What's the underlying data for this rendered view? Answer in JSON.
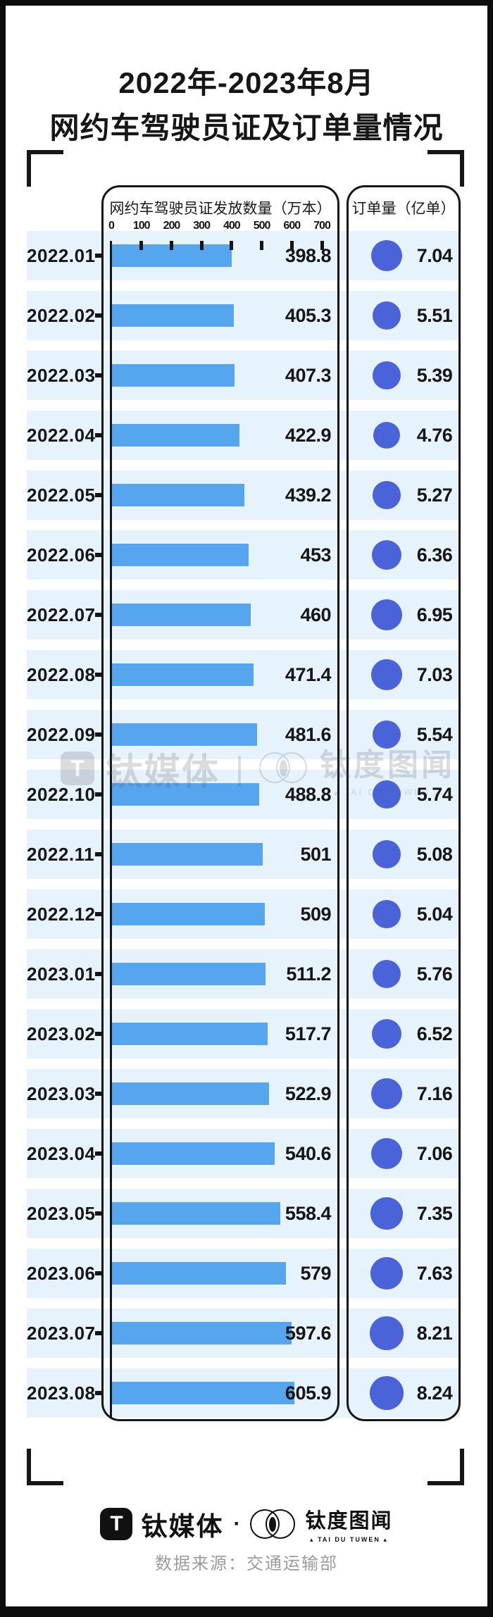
{
  "title": {
    "line1": "2022年-2023年8月",
    "line2": "网约车驾驶员证及订单量情况"
  },
  "panels": {
    "bars_header": "网约车驾驶员证发放数量（万本）",
    "orders_header": "订单量（亿单）"
  },
  "axis": {
    "ticks": [
      0,
      100,
      200,
      300,
      400,
      500,
      600,
      700
    ]
  },
  "chart_data": {
    "type": "bar",
    "orientation": "horizontal",
    "title": "2022年-2023年8月网约车驾驶员证及订单量情况",
    "categories": [
      "2022.01",
      "2022.02",
      "2022.03",
      "2022.04",
      "2022.05",
      "2022.06",
      "2022.07",
      "2022.08",
      "2022.09",
      "2022.10",
      "2022.11",
      "2022.12",
      "2023.01",
      "2023.02",
      "2023.03",
      "2023.04",
      "2023.05",
      "2023.06",
      "2023.07",
      "2023.08"
    ],
    "series": [
      {
        "name": "网约车驾驶员证发放数量（万本）",
        "type": "bar",
        "values": [
          398.8,
          405.3,
          407.3,
          422.9,
          439.2,
          453,
          460,
          471.4,
          481.6,
          488.8,
          501,
          509,
          511.2,
          517.7,
          522.9,
          540.6,
          558.4,
          579,
          597.6,
          605.9
        ]
      },
      {
        "name": "订单量（亿单）",
        "type": "point",
        "values": [
          7.04,
          5.51,
          5.39,
          4.76,
          5.27,
          6.36,
          6.95,
          7.03,
          5.54,
          5.74,
          5.08,
          5.04,
          5.76,
          6.52,
          7.16,
          7.06,
          7.35,
          7.63,
          8.21,
          8.24
        ]
      }
    ],
    "xlim": [
      0,
      700
    ],
    "x_ticks": [
      0,
      100,
      200,
      300,
      400,
      500,
      600,
      700
    ],
    "grid": false,
    "legend_position": "top"
  },
  "watermark": {
    "logo_glyph": "T",
    "brand1": "钛媒体",
    "divider": "|",
    "brand2": "钛度图闻",
    "brand2_caption": "▴ TAI DU TUWEN ▴"
  },
  "footer": {
    "logo_glyph": "T",
    "brand1": "钛媒体",
    "dot": "·",
    "brand2": "钛度图闻",
    "brand2_caption": "▴ TAI DU TUWEN ▴",
    "source": "数据来源：交通运输部"
  },
  "colors": {
    "bar": "#56a5ef",
    "band": "#e7f3fc",
    "dot": "#4a63d8",
    "ink": "#161616"
  }
}
